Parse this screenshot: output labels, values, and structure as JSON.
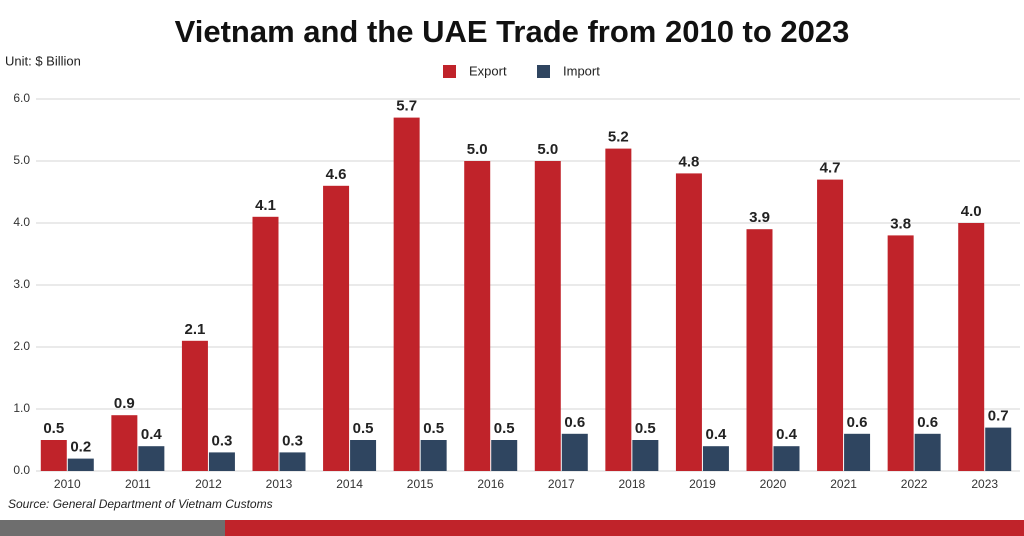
{
  "chart_data": {
    "type": "bar",
    "title": "Vietnam and the UAE Trade from 2010 to 2023",
    "unit": "Unit: $ Billion",
    "source": "Source: General Department of Vietnam Customs",
    "categories": [
      "2010",
      "2011",
      "2012",
      "2013",
      "2014",
      "2015",
      "2016",
      "2017",
      "2018",
      "2019",
      "2020",
      "2021",
      "2022",
      "2023"
    ],
    "series": [
      {
        "name": "Export",
        "color": "#c0232a",
        "values": [
          0.5,
          0.9,
          2.1,
          4.1,
          4.6,
          5.7,
          5.0,
          5.0,
          5.2,
          4.8,
          3.9,
          4.7,
          3.8,
          4.0
        ],
        "value_labels": [
          "0.5",
          "0.9",
          "2.1",
          "4.1",
          "4.6",
          "5.7",
          "5.0",
          "5.0",
          "5.2",
          "4.8",
          "3.9",
          "4.7",
          "3.8",
          "4.0"
        ]
      },
      {
        "name": "Import",
        "color": "#2f4560",
        "values": [
          0.2,
          0.4,
          0.3,
          0.3,
          0.5,
          0.5,
          0.5,
          0.6,
          0.5,
          0.4,
          0.4,
          0.6,
          0.6,
          0.7
        ],
        "value_labels": [
          "0.2",
          "0.4",
          "0.3",
          "0.3",
          "0.5",
          "0.5",
          "0.5",
          "0.6",
          "0.5",
          "0.4",
          "0.4",
          "0.6",
          "0.6",
          "0.7"
        ]
      }
    ],
    "ylim": [
      0,
      6
    ],
    "yticks": [
      {
        "value": 0,
        "label": "0.0"
      },
      {
        "value": 1,
        "label": "1.0"
      },
      {
        "value": 2,
        "label": "2.0"
      },
      {
        "value": 3,
        "label": "3.0"
      },
      {
        "value": 4,
        "label": "4.0"
      },
      {
        "value": 5,
        "label": "5.0"
      },
      {
        "value": 6,
        "label": "6.0"
      }
    ],
    "grid": true
  }
}
